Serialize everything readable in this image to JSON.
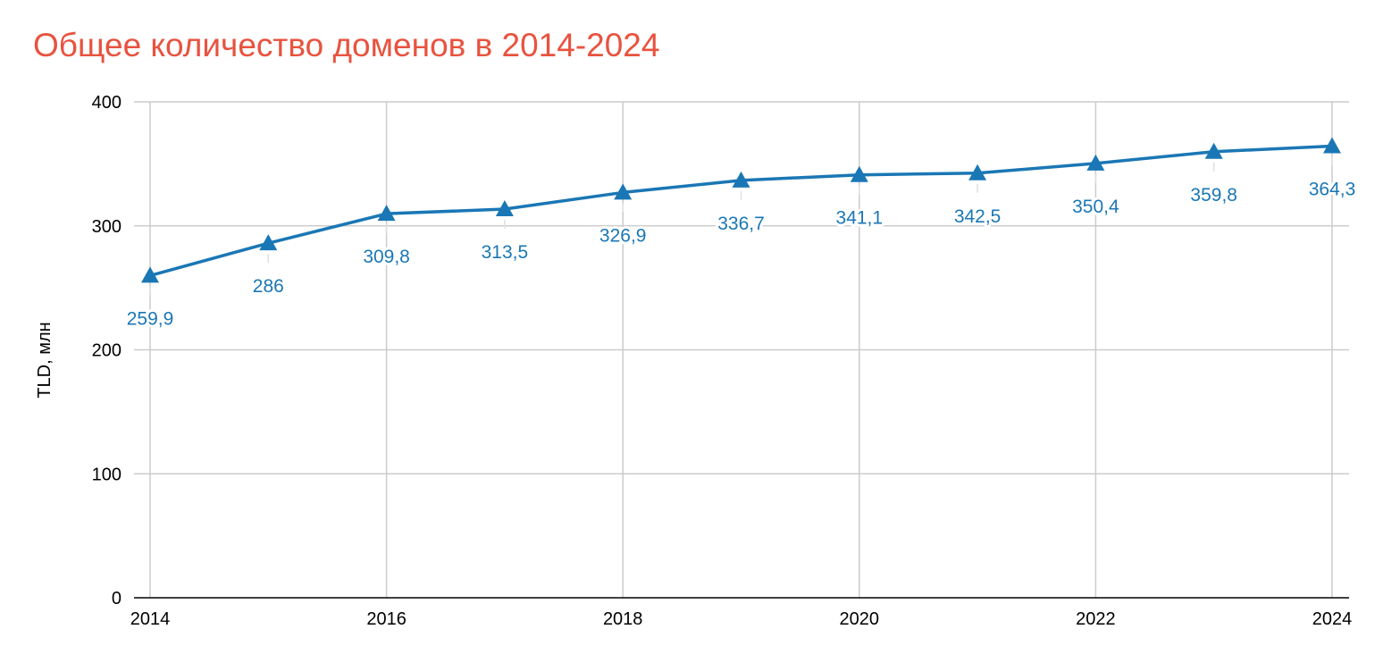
{
  "colors": {
    "title": "#E8533F",
    "series": "#1A77B5",
    "grid": "#CCCCCC",
    "axis": "#000000"
  },
  "chart_data": {
    "type": "line",
    "title": "Общее количество доменов в 2014-2024",
    "xlabel": "",
    "ylabel": "TLD, млн",
    "x": [
      2014,
      2015,
      2016,
      2017,
      2018,
      2019,
      2020,
      2021,
      2022,
      2023,
      2024
    ],
    "x_ticks": [
      "2014",
      "2016",
      "2018",
      "2020",
      "2022",
      "2024"
    ],
    "y_ticks": [
      "0",
      "100",
      "200",
      "300",
      "400"
    ],
    "ylim": [
      0,
      400
    ],
    "xlim": [
      2014,
      2024
    ],
    "grid": true,
    "marker": "triangle",
    "series": [
      {
        "values": [
          259.9,
          286,
          309.8,
          313.5,
          326.9,
          336.7,
          341.1,
          342.5,
          350.4,
          359.8,
          364.3
        ],
        "data_labels": [
          "259,9",
          "286",
          "309,8",
          "313,5",
          "326,9",
          "336,7",
          "341,1",
          "342,5",
          "350,4",
          "359,8",
          "364,3"
        ]
      }
    ]
  }
}
